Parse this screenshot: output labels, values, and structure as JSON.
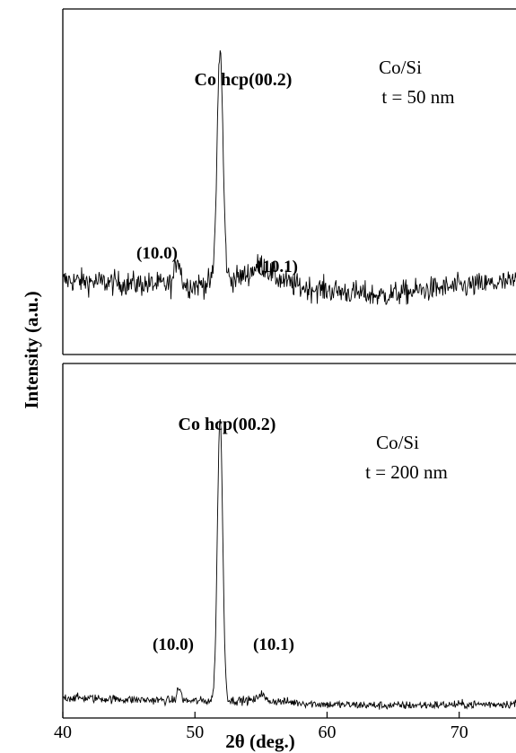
{
  "chart_data": {
    "type": "line",
    "ylabel": "Intensity (a.u.)",
    "xlabel": "2θ (deg.)",
    "xlim": [
      40,
      74.3
    ],
    "x_ticks": [
      40,
      50,
      60,
      70
    ],
    "x_tick_labels": [
      "40",
      "50",
      "60",
      "70"
    ],
    "shared_x_axis": true,
    "grid": false,
    "panels": [
      {
        "name": "Co/Si t = 50 nm",
        "label_line1": "Co/Si",
        "label_line2": "t = 50 nm",
        "ylim": [
          0,
          1.0
        ],
        "noise": 0.035,
        "baseline": [
          [
            40,
            0.215
          ],
          [
            45,
            0.205
          ],
          [
            50,
            0.2
          ],
          [
            53,
            0.22
          ],
          [
            55,
            0.235
          ],
          [
            58,
            0.195
          ],
          [
            64,
            0.17
          ],
          [
            68,
            0.19
          ],
          [
            74.3,
            0.21
          ]
        ],
        "peaks": [
          {
            "label": "Co hcp(00.2)",
            "x": 51.9,
            "height": 0.67,
            "width": 0.22
          },
          {
            "label": "(10.0)",
            "x": 48.7,
            "height": 0.08,
            "width": 0.2
          },
          {
            "label": "(10.1)",
            "x": 55.0,
            "height": 0.025,
            "width": 0.6
          }
        ]
      },
      {
        "name": "Co/Si t = 200 nm",
        "label_line1": "Co/Si",
        "label_line2": "t = 200 nm",
        "ylim": [
          0,
          1.0
        ],
        "noise": 0.012,
        "baseline": [
          [
            40,
            0.058
          ],
          [
            45,
            0.052
          ],
          [
            50,
            0.048
          ],
          [
            55,
            0.05
          ],
          [
            60,
            0.038
          ],
          [
            65,
            0.035
          ],
          [
            74.3,
            0.04
          ]
        ],
        "peaks": [
          {
            "label": "Co hcp(00.2)",
            "x": 51.9,
            "height": 0.8,
            "width": 0.2
          },
          {
            "label": "(10.0)",
            "x": 48.8,
            "height": 0.035,
            "width": 0.15
          },
          {
            "label": "(10.1)",
            "x": 55.0,
            "height": 0.02,
            "width": 0.2
          }
        ]
      }
    ]
  }
}
